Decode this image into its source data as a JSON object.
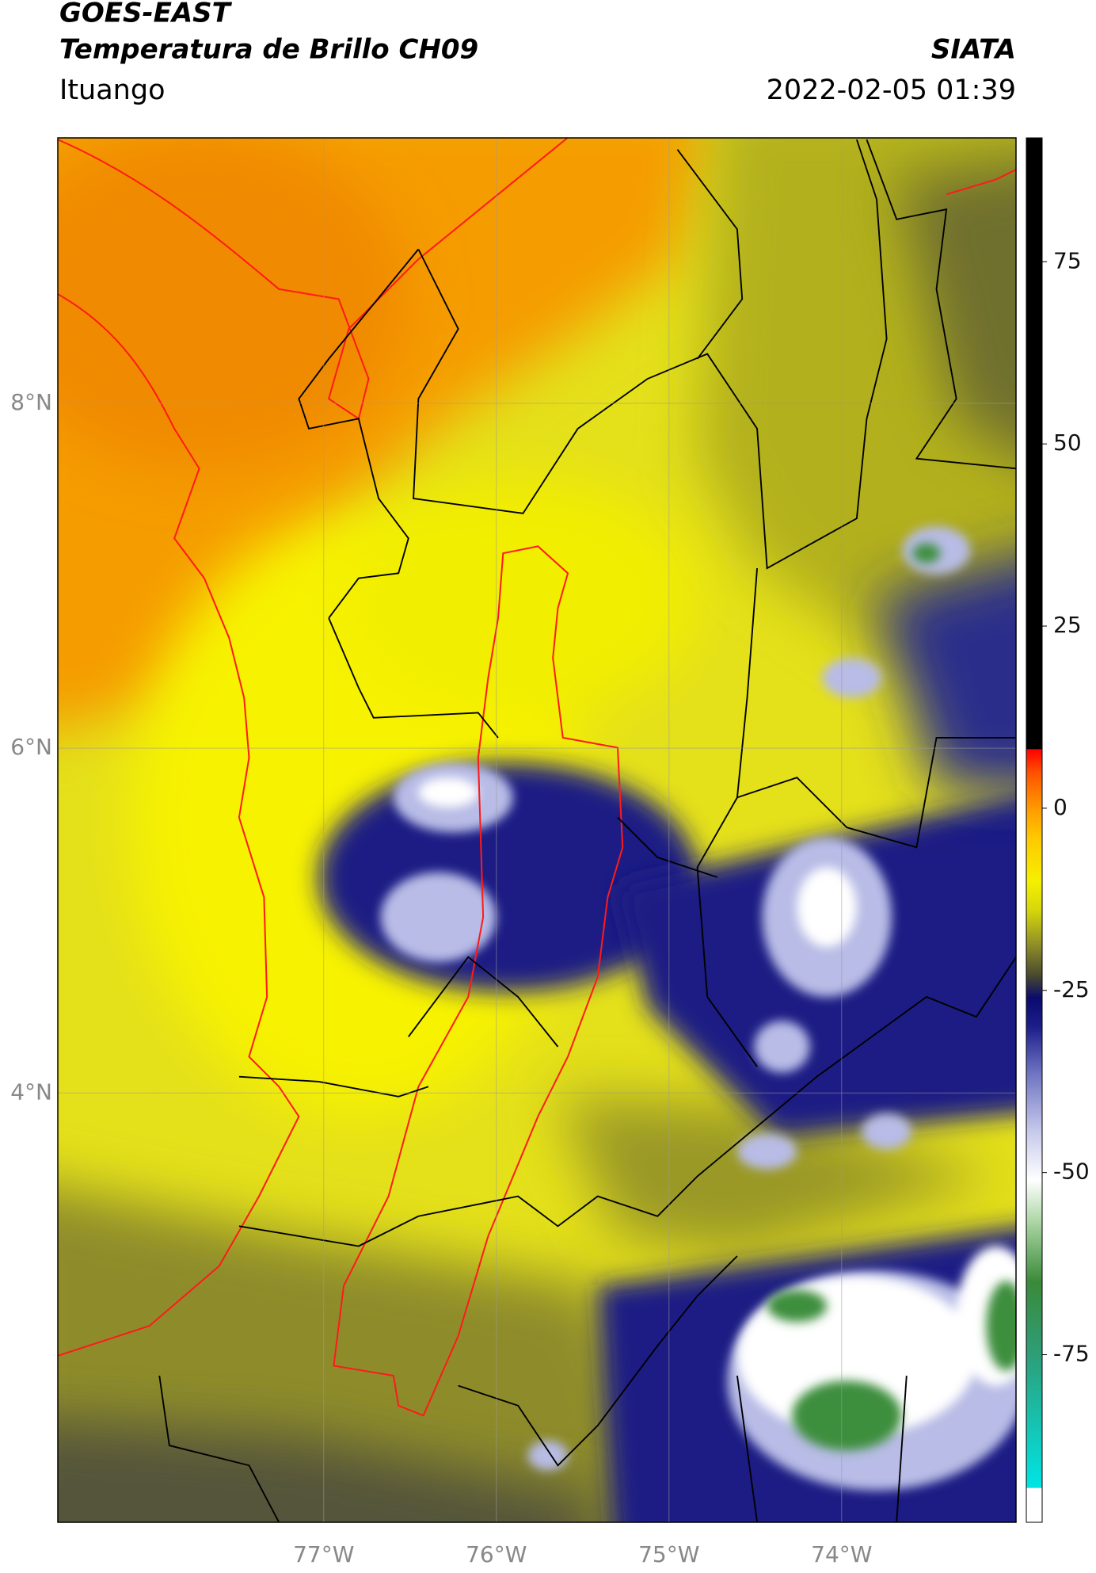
{
  "header": {
    "title": "GOES-EAST",
    "subtitle": "Temperatura de Brillo CH09",
    "source": "SIATA",
    "location": "Ituango",
    "datetime": "2022-02-05 01:39"
  },
  "map": {
    "lon_range": [
      -78.54,
      -72.99
    ],
    "lat_range": [
      1.51,
      9.54
    ],
    "lon_ticks": [
      {
        "value": -77,
        "label": "77°W"
      },
      {
        "value": -76,
        "label": "76°W"
      },
      {
        "value": -75,
        "label": "75°W"
      },
      {
        "value": -74,
        "label": "74°W"
      }
    ],
    "lat_ticks": [
      {
        "value": 8,
        "label": "8°N"
      },
      {
        "value": 6,
        "label": "6°N"
      },
      {
        "value": 4,
        "label": "4°N"
      }
    ],
    "grid": true
  },
  "colorbar": {
    "range": [
      -98,
      92
    ],
    "ticks": [
      75,
      50,
      25,
      0,
      -25,
      -50,
      -75
    ],
    "stops": [
      {
        "value": -98,
        "color": "#ffffff"
      },
      {
        "value": -93.3,
        "color": "#ffffff"
      },
      {
        "value": -93.2,
        "color": "#00e5e5"
      },
      {
        "value": -75,
        "color": "#2e9e78"
      },
      {
        "value": -65,
        "color": "#3a8a3a"
      },
      {
        "value": -57,
        "color": "#a8d4a0"
      },
      {
        "value": -51,
        "color": "#ffffff"
      },
      {
        "value": -44,
        "color": "#c3c6ea"
      },
      {
        "value": -36,
        "color": "#6a70bf"
      },
      {
        "value": -30,
        "color": "#1c1e8a"
      },
      {
        "value": -26,
        "color": "#0a0a6e"
      },
      {
        "value": -23,
        "color": "#48482e"
      },
      {
        "value": -19,
        "color": "#8a8a28"
      },
      {
        "value": -14,
        "color": "#d6d60c"
      },
      {
        "value": -10,
        "color": "#f5f000"
      },
      {
        "value": -4,
        "color": "#ffc800"
      },
      {
        "value": 0,
        "color": "#ff9a00"
      },
      {
        "value": 5,
        "color": "#ff5000"
      },
      {
        "value": 8.1,
        "color": "#ff0000"
      },
      {
        "value": 8.2,
        "color": "#000000"
      },
      {
        "value": 92,
        "color": "#000000"
      }
    ]
  }
}
